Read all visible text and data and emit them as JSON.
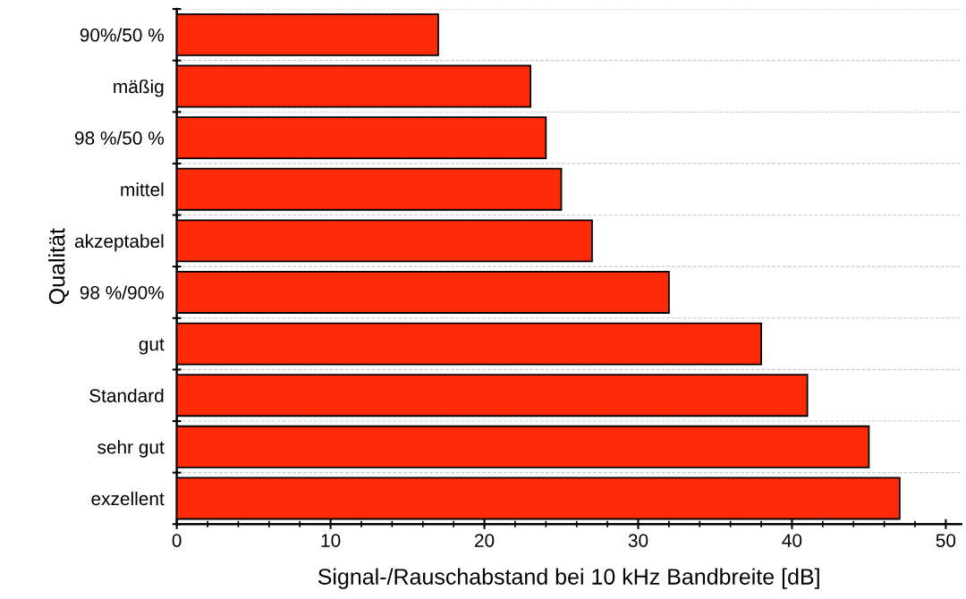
{
  "chart_data": {
    "type": "bar",
    "orientation": "horizontal",
    "categories": [
      "90%/50 %",
      "mäßig",
      "98 %/50 %",
      "mittel",
      "akzeptabel",
      "98 %/90%",
      "gut",
      "Standard",
      "sehr gut",
      "exzellent"
    ],
    "values": [
      17,
      23,
      24,
      25,
      27,
      32,
      38,
      41,
      45,
      47
    ],
    "color": "#ff2a08",
    "xlim": [
      0,
      51
    ],
    "xticks": [
      0,
      10,
      20,
      30,
      40,
      50
    ],
    "xlabel": "Signal-/Rauschabstand bei 10 kHz Bandbreite [dB]",
    "ylabel": "Qualität",
    "grid": "y"
  }
}
